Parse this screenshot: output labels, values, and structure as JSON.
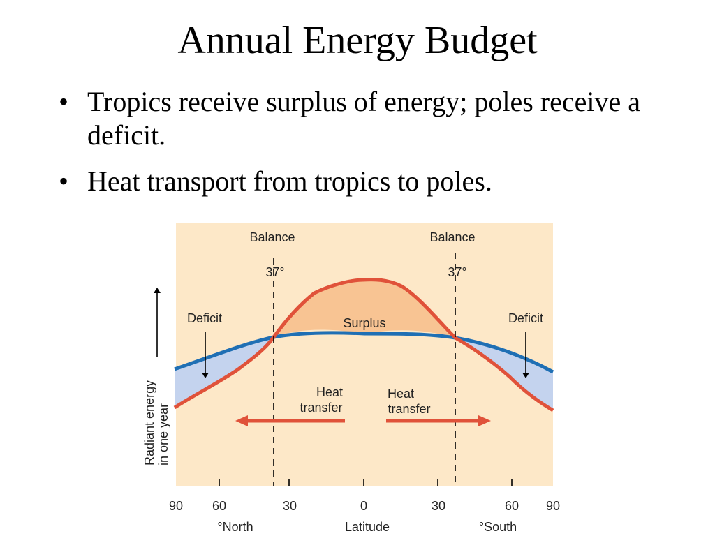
{
  "slide": {
    "title": "Annual Energy Budget",
    "bullets": [
      "Tropics receive surplus of energy; poles receive a deficit.",
      "Heat transport from tropics to poles."
    ]
  },
  "diagram": {
    "balance_left": "Balance",
    "balance_right": "Balance",
    "angle_left": "37°",
    "angle_right": "37°",
    "deficit_left": "Deficit",
    "deficit_right": "Deficit",
    "surplus": "Surplus",
    "heat_left_1": "Heat",
    "heat_left_2": "transfer",
    "heat_right_1": "Heat",
    "heat_right_2": "transfer",
    "y_label_1": "Radiant energy",
    "y_label_2": "in one year",
    "x_ticks": [
      "90",
      "60",
      "30",
      "0",
      "30",
      "60",
      "90"
    ],
    "x_north": "°North",
    "x_center": "Latitude",
    "x_south": "°South",
    "colors": {
      "background": "#fde8c8",
      "incoming_line": "#e0523a",
      "outgoing_line": "#1f6fb4",
      "surplus_fill": "#f8c493",
      "deficit_fill": "#c4d3ee",
      "heat_arrow": "#e0523a"
    }
  }
}
